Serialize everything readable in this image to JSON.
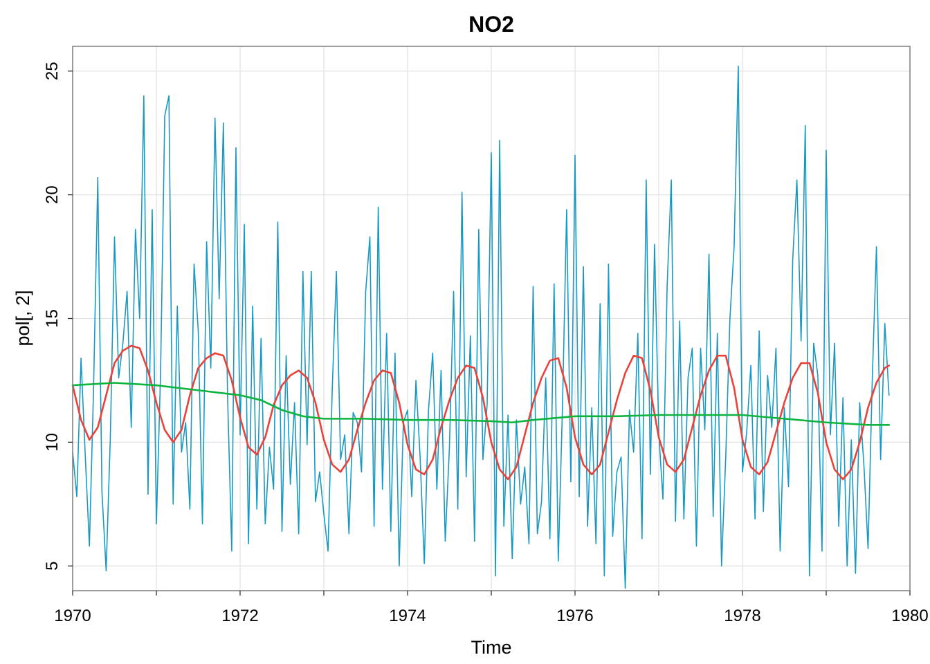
{
  "chart_data": {
    "type": "line",
    "title": "NO2",
    "xlabel": "Time",
    "ylabel": "pol[, 2]",
    "xlim": [
      1970,
      1980
    ],
    "ylim": [
      4,
      26
    ],
    "x_ticks": [
      1970,
      1972,
      1974,
      1976,
      1978,
      1980
    ],
    "x_tick_labels": [
      "1970",
      "1972",
      "1974",
      "1976",
      "1978",
      "1980"
    ],
    "y_ticks": [
      5,
      10,
      15,
      20,
      25
    ],
    "y_tick_labels": [
      "5",
      "10",
      "15",
      "20",
      "25"
    ],
    "grid": true,
    "legend": "none",
    "series": [
      {
        "color": "#1899C2",
        "x": [
          1970.0,
          1970.05,
          1970.1,
          1970.15,
          1970.2,
          1970.25,
          1970.3,
          1970.35,
          1970.4,
          1970.45,
          1970.5,
          1970.55,
          1970.6,
          1970.65,
          1970.7,
          1970.75,
          1970.8,
          1970.85,
          1970.9,
          1970.95,
          1971.0,
          1971.05,
          1971.1,
          1971.15,
          1971.2,
          1971.25,
          1971.3,
          1971.35,
          1971.4,
          1971.45,
          1971.5,
          1971.55,
          1971.6,
          1971.65,
          1971.7,
          1971.75,
          1971.8,
          1971.85,
          1971.9,
          1971.95,
          1972.0,
          1972.05,
          1972.1,
          1972.15,
          1972.2,
          1972.25,
          1972.3,
          1972.35,
          1972.4,
          1972.45,
          1972.5,
          1972.55,
          1972.6,
          1972.65,
          1972.7,
          1972.75,
          1972.8,
          1972.85,
          1972.9,
          1972.95,
          1973.0,
          1973.05,
          1973.1,
          1973.15,
          1973.2,
          1973.25,
          1973.3,
          1973.35,
          1973.4,
          1973.45,
          1973.5,
          1973.55,
          1973.6,
          1973.65,
          1973.7,
          1973.75,
          1973.8,
          1973.85,
          1973.9,
          1973.95,
          1974.0,
          1974.05,
          1974.1,
          1974.15,
          1974.2,
          1974.25,
          1974.3,
          1974.35,
          1974.4,
          1974.45,
          1974.5,
          1974.55,
          1974.6,
          1974.65,
          1974.7,
          1974.75,
          1974.8,
          1974.85,
          1974.9,
          1974.95,
          1975.0,
          1975.05,
          1975.1,
          1975.15,
          1975.2,
          1975.25,
          1975.3,
          1975.35,
          1975.4,
          1975.45,
          1975.5,
          1975.55,
          1975.6,
          1975.65,
          1975.7,
          1975.75,
          1975.8,
          1975.85,
          1975.9,
          1975.95,
          1976.0,
          1976.05,
          1976.1,
          1976.15,
          1976.2,
          1976.25,
          1976.3,
          1976.35,
          1976.4,
          1976.45,
          1976.5,
          1976.55,
          1976.6,
          1976.65,
          1976.7,
          1976.75,
          1976.8,
          1976.85,
          1976.9,
          1976.95,
          1977.0,
          1977.05,
          1977.1,
          1977.15,
          1977.2,
          1977.25,
          1977.3,
          1977.35,
          1977.4,
          1977.45,
          1977.5,
          1977.55,
          1977.6,
          1977.65,
          1977.7,
          1977.75,
          1977.8,
          1977.85,
          1977.9,
          1977.95,
          1978.0,
          1978.05,
          1978.1,
          1978.15,
          1978.2,
          1978.25,
          1978.3,
          1978.35,
          1978.4,
          1978.45,
          1978.5,
          1978.55,
          1978.6,
          1978.65,
          1978.7,
          1978.75,
          1978.8,
          1978.85,
          1978.9,
          1978.95,
          1979.0,
          1979.05,
          1979.1,
          1979.15,
          1979.2,
          1979.25,
          1979.3,
          1979.35,
          1979.4,
          1979.45,
          1979.5,
          1979.55,
          1979.6,
          1979.65,
          1979.7,
          1979.75
        ],
        "values": [
          9.6,
          7.8,
          13.4,
          9.5,
          5.8,
          12.2,
          20.7,
          8.0,
          4.8,
          10.2,
          18.3,
          12.6,
          14.0,
          16.1,
          10.6,
          18.6,
          15.0,
          24.0,
          7.9,
          19.4,
          6.7,
          12.8,
          23.2,
          24.0,
          7.5,
          15.5,
          9.6,
          10.8,
          7.3,
          17.2,
          14.5,
          6.7,
          18.1,
          13.0,
          23.1,
          15.8,
          22.9,
          11.9,
          5.6,
          21.9,
          10.3,
          18.8,
          5.9,
          15.5,
          7.3,
          14.2,
          6.7,
          9.8,
          8.1,
          18.9,
          6.4,
          13.5,
          8.3,
          11.6,
          6.3,
          16.9,
          9.9,
          16.9,
          7.6,
          8.8,
          7.1,
          5.6,
          12.1,
          16.9,
          9.3,
          10.3,
          6.3,
          11.2,
          10.8,
          8.8,
          16.1,
          18.3,
          6.6,
          19.5,
          8.1,
          14.4,
          6.4,
          13.6,
          5.0,
          10.8,
          11.3,
          7.8,
          12.5,
          9.4,
          5.1,
          11.3,
          13.6,
          8.1,
          12.9,
          6.0,
          9.8,
          16.1,
          7.3,
          20.1,
          8.6,
          14.3,
          6.0,
          18.6,
          9.3,
          11.5,
          21.7,
          4.6,
          22.2,
          6.6,
          11.1,
          5.3,
          10.9,
          7.5,
          9.0,
          5.9,
          16.3,
          6.3,
          7.6,
          12.6,
          6.1,
          16.4,
          5.2,
          11.4,
          19.4,
          8.4,
          21.6,
          7.8,
          17.1,
          6.6,
          11.4,
          5.9,
          15.6,
          4.6,
          17.2,
          6.2,
          8.8,
          9.4,
          4.1,
          11.3,
          9.6,
          14.4,
          6.1,
          20.6,
          8.7,
          18.0,
          10.4,
          7.7,
          16.3,
          20.6,
          6.8,
          14.9,
          6.9,
          12.6,
          13.8,
          5.8,
          13.8,
          10.5,
          17.6,
          7.0,
          14.4,
          5.0,
          9.4,
          15.0,
          17.9,
          25.2,
          8.8,
          10.4,
          13.1,
          6.9,
          14.5,
          7.2,
          12.7,
          10.6,
          13.8,
          5.6,
          11.4,
          8.2,
          17.4,
          20.6,
          14.1,
          22.8,
          4.6,
          14.0,
          12.7,
          5.6,
          21.8,
          10.3,
          14.0,
          6.6,
          11.8,
          5.0,
          10.1,
          4.7,
          11.6,
          9.1,
          5.7,
          12.5,
          17.9,
          9.3,
          14.8,
          11.9
        ]
      },
      {
        "color": "#E8423A",
        "x": [
          1970.0,
          1970.1,
          1970.2,
          1970.3,
          1970.4,
          1970.5,
          1970.6,
          1970.7,
          1970.8,
          1970.9,
          1971.0,
          1971.1,
          1971.2,
          1971.3,
          1971.4,
          1971.5,
          1971.6,
          1971.7,
          1971.8,
          1971.9,
          1972.0,
          1972.1,
          1972.2,
          1972.3,
          1972.4,
          1972.5,
          1972.6,
          1972.7,
          1972.8,
          1972.9,
          1973.0,
          1973.1,
          1973.2,
          1973.3,
          1973.4,
          1973.5,
          1973.6,
          1973.7,
          1973.8,
          1973.9,
          1974.0,
          1974.1,
          1974.2,
          1974.3,
          1974.4,
          1974.5,
          1974.6,
          1974.7,
          1974.8,
          1974.9,
          1975.0,
          1975.1,
          1975.2,
          1975.3,
          1975.4,
          1975.5,
          1975.6,
          1975.7,
          1975.8,
          1975.9,
          1976.0,
          1976.1,
          1976.2,
          1976.3,
          1976.4,
          1976.5,
          1976.6,
          1976.7,
          1976.8,
          1976.9,
          1977.0,
          1977.1,
          1977.2,
          1977.3,
          1977.4,
          1977.5,
          1977.6,
          1977.7,
          1977.8,
          1977.9,
          1978.0,
          1978.1,
          1978.2,
          1978.3,
          1978.4,
          1978.5,
          1978.6,
          1978.7,
          1978.8,
          1978.9,
          1979.0,
          1979.1,
          1979.2,
          1979.3,
          1979.4,
          1979.5,
          1979.6,
          1979.7,
          1979.75
        ],
        "values": [
          12.3,
          10.9,
          10.1,
          10.6,
          11.9,
          13.2,
          13.7,
          13.9,
          13.8,
          12.9,
          11.6,
          10.5,
          10.0,
          10.5,
          11.9,
          13.0,
          13.4,
          13.6,
          13.5,
          12.5,
          11.0,
          9.8,
          9.5,
          10.2,
          11.5,
          12.3,
          12.7,
          12.9,
          12.6,
          11.6,
          10.1,
          9.1,
          8.8,
          9.3,
          10.5,
          11.6,
          12.5,
          12.9,
          12.8,
          11.6,
          9.9,
          8.9,
          8.7,
          9.3,
          10.6,
          11.7,
          12.6,
          13.1,
          13.0,
          11.8,
          10.0,
          8.9,
          8.5,
          9.0,
          10.3,
          11.6,
          12.6,
          13.3,
          13.4,
          12.2,
          10.2,
          9.1,
          8.7,
          9.1,
          10.4,
          11.7,
          12.8,
          13.5,
          13.4,
          12.1,
          10.2,
          9.1,
          8.8,
          9.3,
          10.6,
          11.9,
          12.9,
          13.5,
          13.5,
          12.2,
          10.1,
          9.0,
          8.7,
          9.2,
          10.4,
          11.6,
          12.6,
          13.2,
          13.2,
          12.0,
          10.0,
          8.9,
          8.5,
          8.9,
          10.0,
          11.4,
          12.4,
          13.0,
          13.1
        ]
      },
      {
        "color": "#0CB33D",
        "x": [
          1970.0,
          1970.5,
          1971.0,
          1971.5,
          1972.0,
          1972.25,
          1972.5,
          1972.75,
          1973.0,
          1973.5,
          1974.0,
          1974.5,
          1975.0,
          1975.25,
          1975.5,
          1976.0,
          1976.5,
          1977.0,
          1977.5,
          1978.0,
          1978.5,
          1979.0,
          1979.5,
          1979.75
        ],
        "values": [
          12.3,
          12.4,
          12.3,
          12.1,
          11.9,
          11.7,
          11.3,
          11.05,
          10.95,
          10.95,
          10.9,
          10.9,
          10.85,
          10.8,
          10.9,
          11.05,
          11.05,
          11.1,
          11.1,
          11.1,
          10.95,
          10.8,
          10.7,
          10.7
        ]
      }
    ]
  }
}
